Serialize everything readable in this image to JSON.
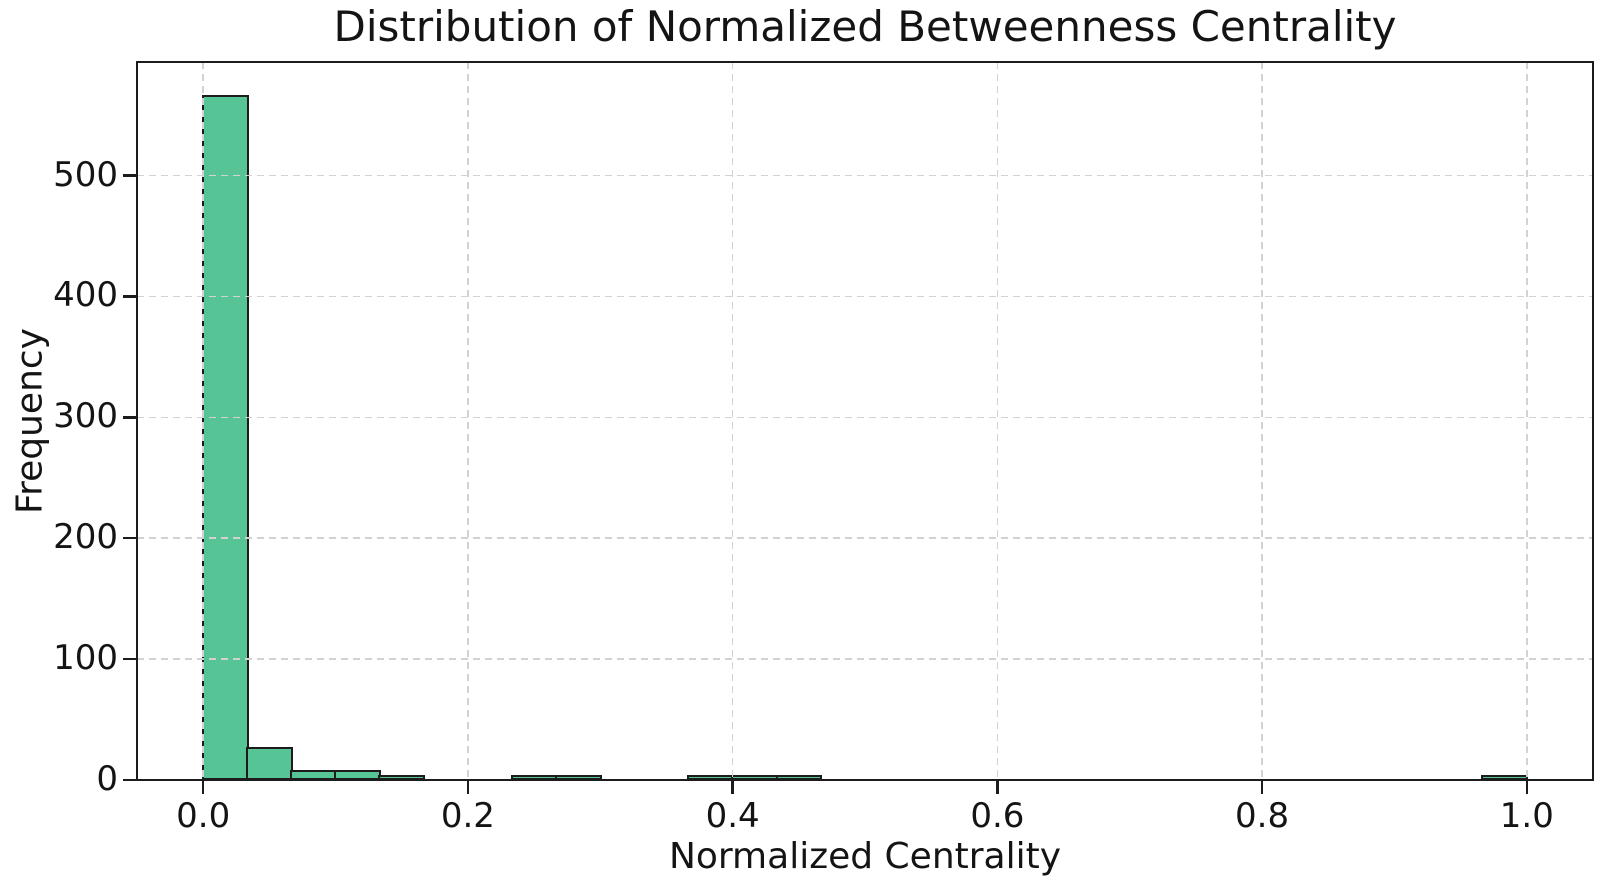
{
  "figure": {
    "background": "#ffffff"
  },
  "chart_data": {
    "type": "bar",
    "subtype": "histogram",
    "title": "Distribution of Normalized Betweenness Centrality",
    "xlabel": "Normalized Centrality",
    "ylabel": "Frequency",
    "n_bins": 30,
    "bin_start": 0.0,
    "bin_width": 0.033333,
    "values": [
      565,
      25,
      6,
      6,
      2,
      0,
      0,
      2,
      2,
      0,
      0,
      2,
      2,
      2,
      0,
      0,
      0,
      0,
      0,
      0,
      0,
      0,
      0,
      0,
      0,
      0,
      0,
      0,
      0,
      2
    ],
    "xticks": [
      0.0,
      0.2,
      0.4,
      0.6,
      0.8,
      1.0
    ],
    "xtick_labels": [
      "0.0",
      "0.2",
      "0.4",
      "0.6",
      "0.8",
      "1.0"
    ],
    "yticks": [
      0,
      100,
      200,
      300,
      400,
      500
    ],
    "ytick_labels": [
      "0",
      "100",
      "200",
      "300",
      "400",
      "500"
    ],
    "xlim": [
      -0.05,
      1.05
    ],
    "ylim": [
      0,
      594
    ],
    "grid": true,
    "grid_style": "dashed",
    "legend": null,
    "colors": {
      "bar_fill": "#57c495",
      "bar_edge": "#1c1c1c",
      "grid": "#d2d2d2",
      "spine": "#1c1c1c",
      "text": "#141414"
    }
  }
}
